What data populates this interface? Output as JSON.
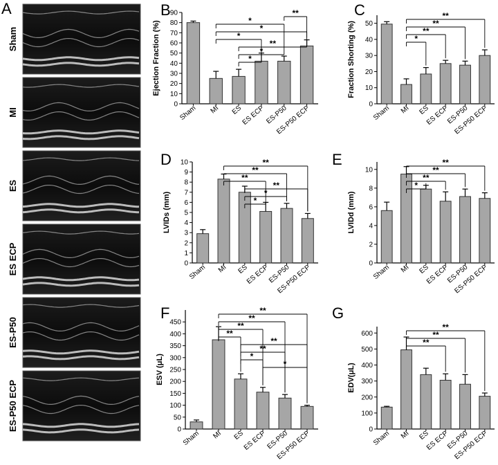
{
  "figure": {
    "echo_panel_letter": "A",
    "echo_rows": [
      "Sham",
      "MI",
      "ES",
      "ES ECP",
      "ES-P50",
      "ES-P50 ECP"
    ]
  },
  "chart_data": [
    {
      "letter": "B",
      "type": "bar",
      "ylabel": "Ejection Fraction (%)",
      "ylim": [
        0,
        90
      ],
      "yticks": [
        0,
        10,
        20,
        30,
        40,
        50,
        60,
        70,
        80,
        90
      ],
      "categories": [
        "Sham",
        "MI",
        "ES",
        "ES ECP",
        "ES-P50",
        "ES-P50 ECP"
      ],
      "values": [
        80,
        25,
        27,
        42,
        42,
        57
      ],
      "errors": [
        1.5,
        7,
        7,
        8,
        5,
        6
      ],
      "significance": [
        {
          "from": 4,
          "to": 5,
          "label": "**"
        },
        {
          "from": 4,
          "to": 4,
          "label": "*"
        },
        {
          "from": 5,
          "to": 5,
          "label": "*"
        },
        {
          "from": 3,
          "to": 3,
          "label": "*"
        },
        {
          "from": 2,
          "to": 5,
          "label": "**"
        },
        {
          "from": 2,
          "to": 4,
          "label": "*"
        },
        {
          "from": 2,
          "to": 3,
          "label": "*"
        }
      ]
    },
    {
      "letter": "C",
      "type": "bar",
      "ylabel": "Fraction Shorting (%)",
      "ylim": [
        0,
        55
      ],
      "yticks": [
        0,
        10,
        20,
        30,
        40,
        50
      ],
      "categories": [
        "Sham",
        "MI",
        "ES",
        "ES ECP",
        "ES-P50",
        "ES-P50 ECP"
      ],
      "values": [
        49.5,
        12,
        18.5,
        25,
        24,
        30
      ],
      "errors": [
        1.5,
        3.5,
        4,
        2,
        2.5,
        3.5
      ],
      "significance": [
        {
          "from": 1,
          "to": 5,
          "label": "**"
        },
        {
          "from": 1,
          "to": 4,
          "label": "**"
        },
        {
          "from": 1,
          "to": 3,
          "label": "**"
        },
        {
          "from": 1,
          "to": 2,
          "label": "*"
        }
      ]
    },
    {
      "letter": "D",
      "type": "bar",
      "ylabel": "LVIDs (mm)",
      "ylim": [
        0,
        10
      ],
      "yticks": [
        0,
        1,
        2,
        3,
        4,
        5,
        6,
        7,
        8,
        9,
        10
      ],
      "categories": [
        "Sham",
        "MI",
        "ES",
        "ES ECP",
        "ES-P50",
        "ES-P50 ECP"
      ],
      "values": [
        2.9,
        8.3,
        7.0,
        5.1,
        5.4,
        4.4
      ],
      "errors": [
        0.4,
        0.5,
        0.6,
        0.9,
        0.5,
        0.5
      ],
      "significance": [
        {
          "from": 1,
          "to": 5,
          "label": "**"
        },
        {
          "from": 1,
          "to": 4,
          "label": "**"
        },
        {
          "from": 1,
          "to": 3,
          "label": "**"
        },
        {
          "from": 2,
          "to": 5,
          "label": "**"
        },
        {
          "from": 2,
          "to": 4,
          "label": "*"
        },
        {
          "from": 2,
          "to": 3,
          "label": "*"
        }
      ]
    },
    {
      "letter": "E",
      "type": "bar",
      "ylabel": "LVIDd (mm)",
      "ylim": [
        0,
        10.8
      ],
      "yticks": [
        0,
        2,
        4,
        6,
        8,
        10
      ],
      "categories": [
        "Sham",
        "MI",
        "ES",
        "ES ECP",
        "ES-P50",
        "ES-P50 ECP"
      ],
      "values": [
        5.6,
        9.5,
        7.9,
        6.6,
        7.1,
        6.9
      ],
      "errors": [
        0.9,
        0.8,
        0.4,
        1.0,
        0.8,
        0.6
      ],
      "significance": [
        {
          "from": 1,
          "to": 5,
          "label": "**"
        },
        {
          "from": 1,
          "to": 4,
          "label": "**"
        },
        {
          "from": 1,
          "to": 3,
          "label": "**"
        },
        {
          "from": 1,
          "to": 2,
          "label": "*"
        }
      ]
    },
    {
      "letter": "F",
      "type": "bar",
      "ylabel": "ESV (μL)",
      "ylim": [
        0,
        500
      ],
      "yticks": [
        0,
        50,
        100,
        150,
        200,
        250,
        300,
        350,
        400,
        450
      ],
      "categories": [
        "Sham",
        "MI",
        "ES",
        "ES ECP",
        "ES-P50",
        "ES-P50 ECP"
      ],
      "values": [
        30,
        375,
        210,
        155,
        130,
        95
      ],
      "errors": [
        8,
        55,
        22,
        20,
        15,
        5
      ],
      "significance": [
        {
          "from": 1,
          "to": 5,
          "label": "**"
        },
        {
          "from": 1,
          "to": 4,
          "label": "**"
        },
        {
          "from": 1,
          "to": 3,
          "label": "**"
        },
        {
          "from": 1,
          "to": 2,
          "label": "**"
        },
        {
          "from": 2,
          "to": 5,
          "label": "**"
        },
        {
          "from": 2,
          "to": 4,
          "label": "**"
        },
        {
          "from": 2,
          "to": 3,
          "label": "*"
        },
        {
          "from": 3,
          "to": 5,
          "label": "*"
        }
      ]
    },
    {
      "letter": "G",
      "type": "bar",
      "ylabel": "EDV(μL)",
      "ylim": [
        0,
        640
      ],
      "yticks": [
        0,
        100,
        200,
        300,
        400,
        500,
        600
      ],
      "categories": [
        "Sham",
        "MI",
        "ES",
        "ES ECP",
        "ES-P50",
        "ES-P50 ECP"
      ],
      "values": [
        137,
        495,
        340,
        305,
        280,
        205
      ],
      "errors": [
        5,
        80,
        40,
        40,
        60,
        20
      ],
      "significance": [
        {
          "from": 1,
          "to": 5,
          "label": "**"
        },
        {
          "from": 1,
          "to": 4,
          "label": "**"
        },
        {
          "from": 1,
          "to": 3,
          "label": "**"
        }
      ]
    }
  ]
}
